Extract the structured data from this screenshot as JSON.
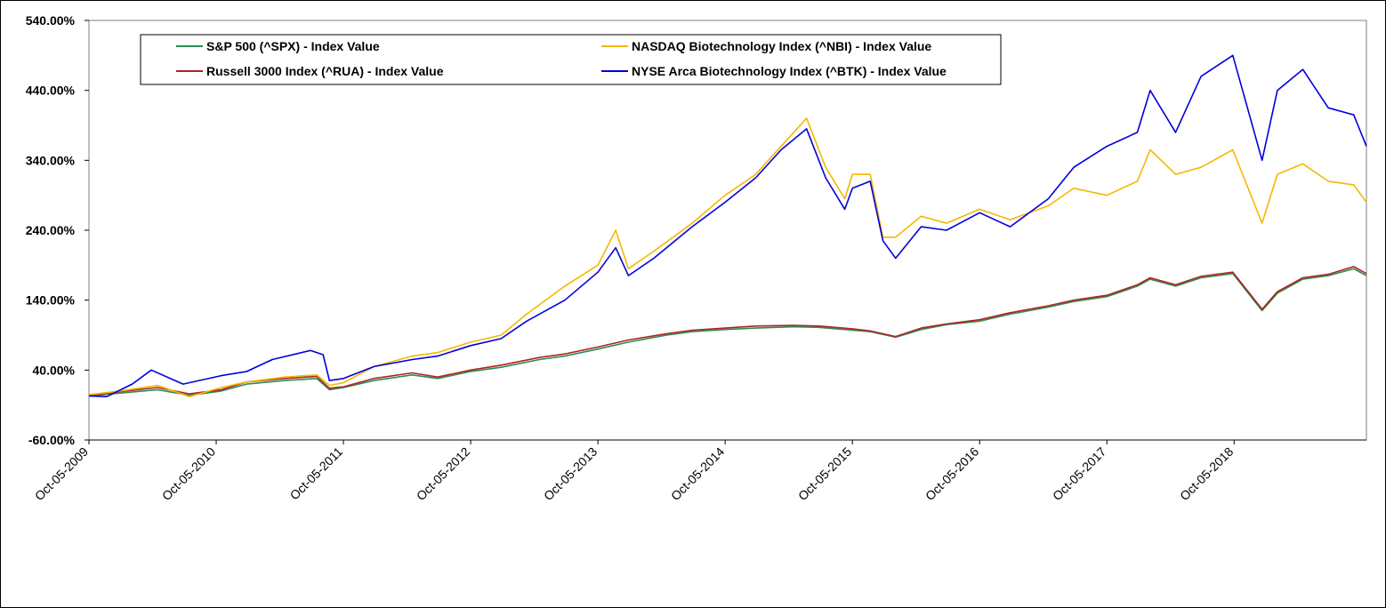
{
  "chart_data": {
    "type": "line",
    "title": "",
    "xlabel": "",
    "ylabel": "",
    "ylim": [
      -60,
      540
    ],
    "y_ticks": [
      "540.00%",
      "440.00%",
      "340.00%",
      "240.00%",
      "140.00%",
      "40.00%",
      "-60.00%"
    ],
    "y_tick_values": [
      540,
      440,
      340,
      240,
      140,
      40,
      -60
    ],
    "x_ticks": [
      "Oct-05-2009",
      "Oct-05-2010",
      "Oct-05-2011",
      "Oct-05-2012",
      "Oct-05-2013",
      "Oct-05-2014",
      "Oct-05-2015",
      "Oct-05-2016",
      "Oct-05-2017",
      "Oct-05-2018"
    ],
    "x_tick_values": [
      2009.76,
      2010.76,
      2011.76,
      2012.76,
      2013.76,
      2014.76,
      2015.76,
      2016.76,
      2017.76,
      2018.76
    ],
    "xlim": [
      2009.76,
      2019.8
    ],
    "grid": false,
    "legend_position": "top",
    "series": [
      {
        "name": "S&P 500 (^SPX) - Index Value",
        "color": "#2e8b57",
        "x": [
          2009.76,
          2010.0,
          2010.3,
          2010.55,
          2010.8,
          2011.0,
          2011.3,
          2011.55,
          2011.65,
          2011.76,
          2012.0,
          2012.3,
          2012.5,
          2012.76,
          2013.0,
          2013.3,
          2013.5,
          2013.76,
          2014.0,
          2014.3,
          2014.5,
          2014.76,
          2015.0,
          2015.3,
          2015.5,
          2015.76,
          2015.9,
          2016.1,
          2016.3,
          2016.5,
          2016.76,
          2017.0,
          2017.3,
          2017.5,
          2017.76,
          2018.0,
          2018.1,
          2018.3,
          2018.5,
          2018.75,
          2018.98,
          2019.1,
          2019.3,
          2019.5,
          2019.7,
          2019.8
        ],
        "values": [
          3,
          7,
          12,
          4,
          10,
          20,
          25,
          28,
          12,
          15,
          25,
          33,
          28,
          38,
          44,
          55,
          60,
          70,
          80,
          90,
          95,
          98,
          100,
          102,
          101,
          97,
          95,
          87,
          98,
          105,
          110,
          120,
          130,
          138,
          145,
          160,
          170,
          160,
          172,
          178,
          125,
          150,
          170,
          175,
          185,
          175
        ]
      },
      {
        "name": "Russell 3000 Index (^RUA) - Index Value",
        "color": "#b22222",
        "x": [
          2009.76,
          2010.0,
          2010.3,
          2010.55,
          2010.8,
          2011.0,
          2011.3,
          2011.55,
          2011.65,
          2011.76,
          2012.0,
          2012.3,
          2012.5,
          2012.76,
          2013.0,
          2013.3,
          2013.5,
          2013.76,
          2014.0,
          2014.3,
          2014.5,
          2014.76,
          2015.0,
          2015.3,
          2015.5,
          2015.76,
          2015.9,
          2016.1,
          2016.3,
          2016.5,
          2016.76,
          2017.0,
          2017.3,
          2017.5,
          2017.76,
          2018.0,
          2018.1,
          2018.3,
          2018.5,
          2018.75,
          2018.98,
          2019.1,
          2019.3,
          2019.5,
          2019.7,
          2019.8
        ],
        "values": [
          4,
          9,
          15,
          6,
          12,
          23,
          28,
          31,
          14,
          16,
          28,
          36,
          30,
          40,
          47,
          58,
          63,
          73,
          83,
          92,
          97,
          100,
          103,
          104,
          103,
          99,
          96,
          88,
          100,
          106,
          112,
          122,
          132,
          140,
          147,
          162,
          172,
          162,
          174,
          180,
          127,
          152,
          172,
          177,
          188,
          178
        ]
      },
      {
        "name": "NASDAQ Biotechnology Index (^NBI) - Index Value",
        "color": "#f5b800",
        "x": [
          2009.76,
          2010.0,
          2010.3,
          2010.55,
          2010.8,
          2011.0,
          2011.3,
          2011.55,
          2011.65,
          2011.76,
          2012.0,
          2012.3,
          2012.5,
          2012.76,
          2013.0,
          2013.2,
          2013.5,
          2013.76,
          2013.9,
          2014.0,
          2014.2,
          2014.5,
          2014.76,
          2015.0,
          2015.2,
          2015.4,
          2015.55,
          2015.7,
          2015.76,
          2015.9,
          2016.0,
          2016.1,
          2016.3,
          2016.5,
          2016.76,
          2017.0,
          2017.3,
          2017.5,
          2017.76,
          2018.0,
          2018.1,
          2018.3,
          2018.5,
          2018.75,
          2018.98,
          2019.1,
          2019.3,
          2019.5,
          2019.7,
          2019.8
        ],
        "values": [
          5,
          10,
          18,
          2,
          15,
          23,
          30,
          33,
          18,
          22,
          45,
          60,
          65,
          80,
          90,
          120,
          160,
          190,
          240,
          185,
          210,
          250,
          290,
          320,
          360,
          400,
          330,
          285,
          320,
          320,
          230,
          230,
          260,
          250,
          270,
          255,
          275,
          300,
          290,
          310,
          355,
          320,
          330,
          355,
          250,
          320,
          335,
          310,
          305,
          280
        ]
      },
      {
        "name": "NYSE Arca Biotechnology Index (^BTK) - Index Value",
        "color": "#0000dd",
        "x": [
          2009.76,
          2009.9,
          2010.1,
          2010.25,
          2010.5,
          2010.8,
          2011.0,
          2011.2,
          2011.5,
          2011.6,
          2011.65,
          2011.76,
          2012.0,
          2012.3,
          2012.5,
          2012.76,
          2013.0,
          2013.2,
          2013.5,
          2013.76,
          2013.9,
          2014.0,
          2014.2,
          2014.5,
          2014.76,
          2015.0,
          2015.2,
          2015.4,
          2015.55,
          2015.7,
          2015.76,
          2015.9,
          2016.0,
          2016.1,
          2016.3,
          2016.5,
          2016.76,
          2017.0,
          2017.3,
          2017.5,
          2017.76,
          2018.0,
          2018.1,
          2018.3,
          2018.5,
          2018.75,
          2018.98,
          2019.1,
          2019.3,
          2019.5,
          2019.7,
          2019.8
        ],
        "values": [
          3,
          2,
          20,
          40,
          20,
          32,
          38,
          55,
          68,
          62,
          25,
          28,
          45,
          55,
          60,
          75,
          85,
          110,
          140,
          180,
          215,
          175,
          200,
          245,
          280,
          315,
          355,
          385,
          315,
          270,
          300,
          310,
          225,
          200,
          245,
          240,
          265,
          245,
          285,
          330,
          360,
          380,
          440,
          380,
          460,
          490,
          340,
          440,
          470,
          415,
          405,
          360
        ]
      }
    ]
  }
}
